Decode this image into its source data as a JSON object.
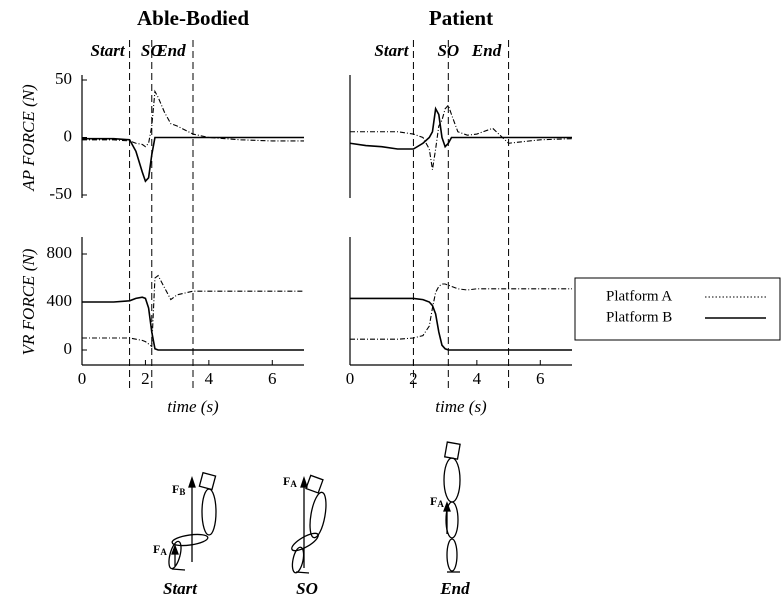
{
  "chart_data": [
    {
      "type": "line",
      "title": "Able-Bodied",
      "ylabel": "AP  FORCE (N)",
      "x": [
        0,
        0.5,
        1,
        1.5,
        1.7,
        1.9,
        2.0,
        2.1,
        2.2,
        2.3,
        2.4,
        2.6,
        2.8,
        3.0,
        3.5,
        4,
        5,
        6,
        7
      ],
      "series": [
        {
          "name": "Platform A",
          "color": "#000000",
          "style": "dashed",
          "values": [
            -2,
            -2,
            -2,
            -3,
            -5,
            -6,
            -8,
            -5,
            10,
            40,
            35,
            22,
            12,
            10,
            3,
            0,
            -2,
            -3,
            -3
          ]
        },
        {
          "name": "Platform B",
          "color": "#000000",
          "style": "solid",
          "values": [
            -1,
            -1,
            -1,
            -2,
            -12,
            -30,
            -38,
            -35,
            -15,
            0,
            0,
            0,
            0,
            0,
            0,
            0,
            0,
            0,
            0
          ]
        }
      ],
      "events": [
        {
          "label": "Start",
          "x": 1.5
        },
        {
          "label": "SO",
          "x": 2.2
        },
        {
          "label": "End",
          "x": 3.5
        }
      ],
      "xlim": [
        0,
        7
      ],
      "ylim": [
        -50,
        50
      ],
      "yticks": [
        -50,
        0,
        50
      ]
    },
    {
      "type": "line",
      "ylabel": "VR  FORCE (N)",
      "xlabel": "time (s)",
      "x": [
        0,
        0.5,
        1,
        1.5,
        1.7,
        1.9,
        2.0,
        2.1,
        2.2,
        2.3,
        2.4,
        2.6,
        2.8,
        3.0,
        3.5,
        4,
        5,
        6,
        7
      ],
      "series": [
        {
          "name": "Platform A",
          "color": "#000000",
          "style": "dashed",
          "values": [
            100,
            100,
            100,
            100,
            90,
            80,
            70,
            50,
            30,
            600,
            620,
            520,
            420,
            460,
            490,
            490,
            490,
            490,
            490
          ]
        },
        {
          "name": "Platform B",
          "color": "#000000",
          "style": "solid",
          "values": [
            400,
            400,
            400,
            410,
            430,
            440,
            430,
            350,
            150,
            10,
            0,
            0,
            0,
            0,
            0,
            0,
            0,
            0,
            0
          ]
        }
      ],
      "xlim": [
        0,
        7
      ],
      "xticks": [
        0,
        2,
        4,
        6
      ],
      "ylim": [
        -100,
        900
      ],
      "yticks": [
        0,
        400,
        800
      ]
    },
    {
      "type": "line",
      "title": "Patient",
      "x": [
        0,
        0.5,
        1,
        1.5,
        2,
        2.3,
        2.5,
        2.6,
        2.7,
        2.8,
        2.9,
        3.0,
        3.1,
        3.2,
        3.4,
        3.7,
        4,
        4.5,
        5,
        6,
        7
      ],
      "series": [
        {
          "name": "Platform A",
          "color": "#000000",
          "style": "dashed",
          "values": [
            5,
            5,
            5,
            5,
            3,
            0,
            -10,
            -28,
            -10,
            10,
            15,
            25,
            28,
            20,
            5,
            2,
            3,
            8,
            -5,
            -2,
            -1
          ]
        },
        {
          "name": "Platform B",
          "color": "#000000",
          "style": "solid",
          "values": [
            -5,
            -7,
            -8,
            -10,
            -10,
            -5,
            0,
            5,
            25,
            20,
            0,
            -8,
            -5,
            0,
            0,
            0,
            0,
            0,
            0,
            0,
            0
          ]
        }
      ],
      "events": [
        {
          "label": "Start",
          "x": 2
        },
        {
          "label": "SO",
          "x": 3.1
        },
        {
          "label": "End",
          "x": 5
        }
      ],
      "xlim": [
        0,
        7
      ],
      "ylim": [
        -50,
        50
      ]
    },
    {
      "type": "line",
      "xlabel": "time (s)",
      "x": [
        0,
        0.5,
        1,
        1.5,
        2,
        2.3,
        2.5,
        2.6,
        2.7,
        2.8,
        2.9,
        3.0,
        3.1,
        3.2,
        3.4,
        3.7,
        4,
        4.5,
        5,
        6,
        7
      ],
      "series": [
        {
          "name": "Platform A",
          "color": "#000000",
          "style": "dashed",
          "values": [
            90,
            90,
            90,
            90,
            100,
            120,
            200,
            350,
            480,
            530,
            550,
            550,
            540,
            530,
            510,
            500,
            510,
            510,
            510,
            510,
            510
          ]
        },
        {
          "name": "Platform B",
          "color": "#000000",
          "style": "solid",
          "values": [
            430,
            430,
            430,
            430,
            430,
            420,
            400,
            370,
            300,
            150,
            40,
            10,
            0,
            0,
            0,
            0,
            0,
            0,
            0,
            0,
            0
          ]
        }
      ],
      "xlim": [
        0,
        7
      ],
      "xticks": [
        0,
        2,
        4,
        6
      ],
      "ylim": [
        -100,
        900
      ]
    }
  ],
  "illustration": {
    "phases": [
      "Start",
      "SO",
      "End"
    ],
    "forces": [
      {
        "symbol": "F",
        "subscript": "B"
      },
      {
        "symbol": "F",
        "subscript": "A"
      },
      {
        "symbol": "F",
        "subscript": "A"
      },
      {
        "symbol": "F",
        "subscript": "A"
      }
    ]
  }
}
